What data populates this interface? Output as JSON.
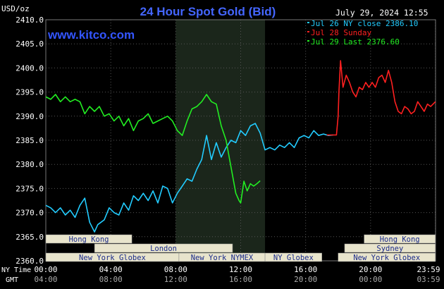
{
  "header": {
    "title": "24 Hour Spot Gold (Bid)",
    "unit": "USD/oz",
    "site": "www.kitco.com",
    "datetime": "July 29, 2024 12:55"
  },
  "legend": [
    {
      "label": "Jul 26 NY close 2386.10",
      "color": "#22ccff"
    },
    {
      "label": "Jul 28 Sunday",
      "color": "#ff2020"
    },
    {
      "label": "Jul 29 Last 2376.60",
      "color": "#22ee22"
    }
  ],
  "axis": {
    "row1_label": "NY Time",
    "row2_label": "GMT",
    "x_ticks_ny": [
      "00:00",
      "04:00",
      "08:00",
      "12:00",
      "16:00",
      "20:00",
      "23:59"
    ],
    "x_ticks_gmt": [
      "04:00",
      "08:00",
      "12:00",
      "16:00",
      "20:00",
      "00:00",
      "03:59"
    ]
  },
  "sessions": [
    {
      "label": "Hong Kong",
      "row": 0,
      "start": 0,
      "end": 5.3
    },
    {
      "label": "Hong Kong",
      "row": 0,
      "start": 19.6,
      "end": 23.99
    },
    {
      "label": "Sydney",
      "row": 1,
      "start": 18.4,
      "end": 23.99
    },
    {
      "label": "London",
      "row": 1,
      "start": 3.0,
      "end": 11.5
    },
    {
      "label": "New York Globex",
      "row": 2,
      "start": 0,
      "end": 8.2
    },
    {
      "label": "New York NYMEX",
      "row": 2,
      "start": 8.2,
      "end": 13.5
    },
    {
      "label": "NY Globex",
      "row": 2,
      "start": 13.5,
      "end": 17.0
    },
    {
      "label": "New York Globex",
      "row": 2,
      "start": 18.0,
      "end": 23.99
    }
  ],
  "colors": {
    "background": "#000000",
    "grid": "#555555",
    "highlight": "#1b261b",
    "session_fill": "#e8e4cc",
    "axis_text": "#ffffff",
    "title": "#4466ff",
    "site": "#3355ff",
    "axis_bottom_text": "#aaaaaa"
  },
  "chart_data": {
    "type": "line",
    "title": "24 Hour Spot Gold (Bid)",
    "ylabel": "USD/oz",
    "xlim": [
      0,
      24
    ],
    "ylim": [
      2360,
      2410
    ],
    "y_ticks": [
      2360.0,
      2365.0,
      2370.0,
      2375.0,
      2380.0,
      2385.0,
      2390.0,
      2395.0,
      2400.0,
      2405.0,
      2410.0
    ],
    "highlight_range": [
      8.0,
      13.5
    ],
    "grid": true,
    "legend_position": "top-right",
    "series": [
      {
        "name": "Jul 26 NY close 2386.10",
        "color": "#22ccff",
        "x": [
          0,
          0.3,
          0.6,
          0.9,
          1.2,
          1.5,
          1.8,
          2.1,
          2.4,
          2.7,
          3.0,
          3.2,
          3.4,
          3.6,
          3.9,
          4.2,
          4.5,
          4.8,
          5.1,
          5.4,
          5.7,
          6.0,
          6.3,
          6.6,
          6.9,
          7.2,
          7.5,
          7.8,
          8.1,
          8.4,
          8.7,
          9.0,
          9.3,
          9.6,
          9.9,
          10.2,
          10.5,
          10.8,
          11.1,
          11.4,
          11.7,
          12.0,
          12.3,
          12.6,
          12.9,
          13.2,
          13.5,
          13.8,
          14.1,
          14.4,
          14.7,
          15.0,
          15.3,
          15.6,
          15.9,
          16.2,
          16.5,
          16.8,
          17.1,
          17.4,
          17.7
        ],
        "y": [
          2371.5,
          2371.0,
          2370.0,
          2371.0,
          2369.5,
          2370.5,
          2369.0,
          2371.5,
          2373.0,
          2368.0,
          2366.0,
          2367.5,
          2368.0,
          2368.5,
          2371.0,
          2370.0,
          2369.5,
          2372.0,
          2370.5,
          2373.5,
          2372.5,
          2374.0,
          2372.5,
          2374.5,
          2372.0,
          2375.5,
          2375.0,
          2372.0,
          2374.0,
          2375.5,
          2377.0,
          2376.5,
          2379.0,
          2381.0,
          2386.0,
          2381.0,
          2384.5,
          2381.5,
          2383.5,
          2385.0,
          2384.5,
          2387.0,
          2386.0,
          2388.0,
          2388.5,
          2386.5,
          2383.0,
          2383.5,
          2383.0,
          2384.0,
          2383.5,
          2384.5,
          2383.5,
          2385.5,
          2386.0,
          2385.5,
          2387.0,
          2386.0,
          2386.3,
          2386.0,
          2386.1
        ]
      },
      {
        "name": "Jul 28 Sunday",
        "color": "#ff2020",
        "x": [
          17.3,
          17.6,
          17.9,
          18.0,
          18.05,
          18.15,
          18.3,
          18.5,
          18.7,
          18.9,
          19.1,
          19.3,
          19.5,
          19.7,
          19.9,
          20.1,
          20.3,
          20.5,
          20.7,
          20.9,
          21.1,
          21.3,
          21.5,
          21.7,
          21.9,
          22.1,
          22.3,
          22.5,
          22.7,
          22.9,
          23.1,
          23.3,
          23.5,
          23.7,
          23.99
        ],
        "y": [
          2386.1,
          2386.1,
          2386.1,
          2390.0,
          2395.0,
          2401.5,
          2396.0,
          2398.5,
          2397.0,
          2395.0,
          2394.0,
          2396.0,
          2395.5,
          2397.0,
          2396.0,
          2397.0,
          2396.0,
          2398.0,
          2398.5,
          2397.0,
          2399.5,
          2397.0,
          2393.0,
          2391.0,
          2390.5,
          2392.0,
          2391.5,
          2390.5,
          2391.0,
          2393.0,
          2392.0,
          2391.0,
          2392.5,
          2392.0,
          2393.0
        ]
      },
      {
        "name": "Jul 29 Last 2376.60",
        "color": "#22ee22",
        "x": [
          0,
          0.3,
          0.6,
          0.9,
          1.2,
          1.5,
          1.8,
          2.1,
          2.4,
          2.7,
          3.0,
          3.3,
          3.6,
          3.9,
          4.2,
          4.5,
          4.8,
          5.1,
          5.4,
          5.7,
          6.0,
          6.3,
          6.6,
          6.9,
          7.2,
          7.5,
          7.8,
          8.1,
          8.4,
          8.7,
          9.0,
          9.3,
          9.6,
          9.9,
          10.2,
          10.5,
          10.8,
          11.1,
          11.4,
          11.7,
          11.9,
          12.0,
          12.2,
          12.4,
          12.6,
          12.8,
          13.0,
          13.2
        ],
        "y": [
          2394.0,
          2393.5,
          2394.5,
          2393.0,
          2394.0,
          2393.0,
          2393.5,
          2393.0,
          2390.5,
          2392.0,
          2391.0,
          2392.0,
          2390.0,
          2390.5,
          2389.0,
          2390.0,
          2388.0,
          2389.5,
          2387.0,
          2389.0,
          2389.5,
          2390.5,
          2388.5,
          2389.0,
          2389.5,
          2390.0,
          2389.0,
          2387.0,
          2386.0,
          2389.0,
          2391.5,
          2392.0,
          2393.0,
          2394.5,
          2393.0,
          2392.5,
          2388.0,
          2385.0,
          2379.5,
          2374.0,
          2372.5,
          2372.0,
          2376.5,
          2374.5,
          2376.0,
          2375.5,
          2376.0,
          2376.6
        ]
      }
    ]
  }
}
